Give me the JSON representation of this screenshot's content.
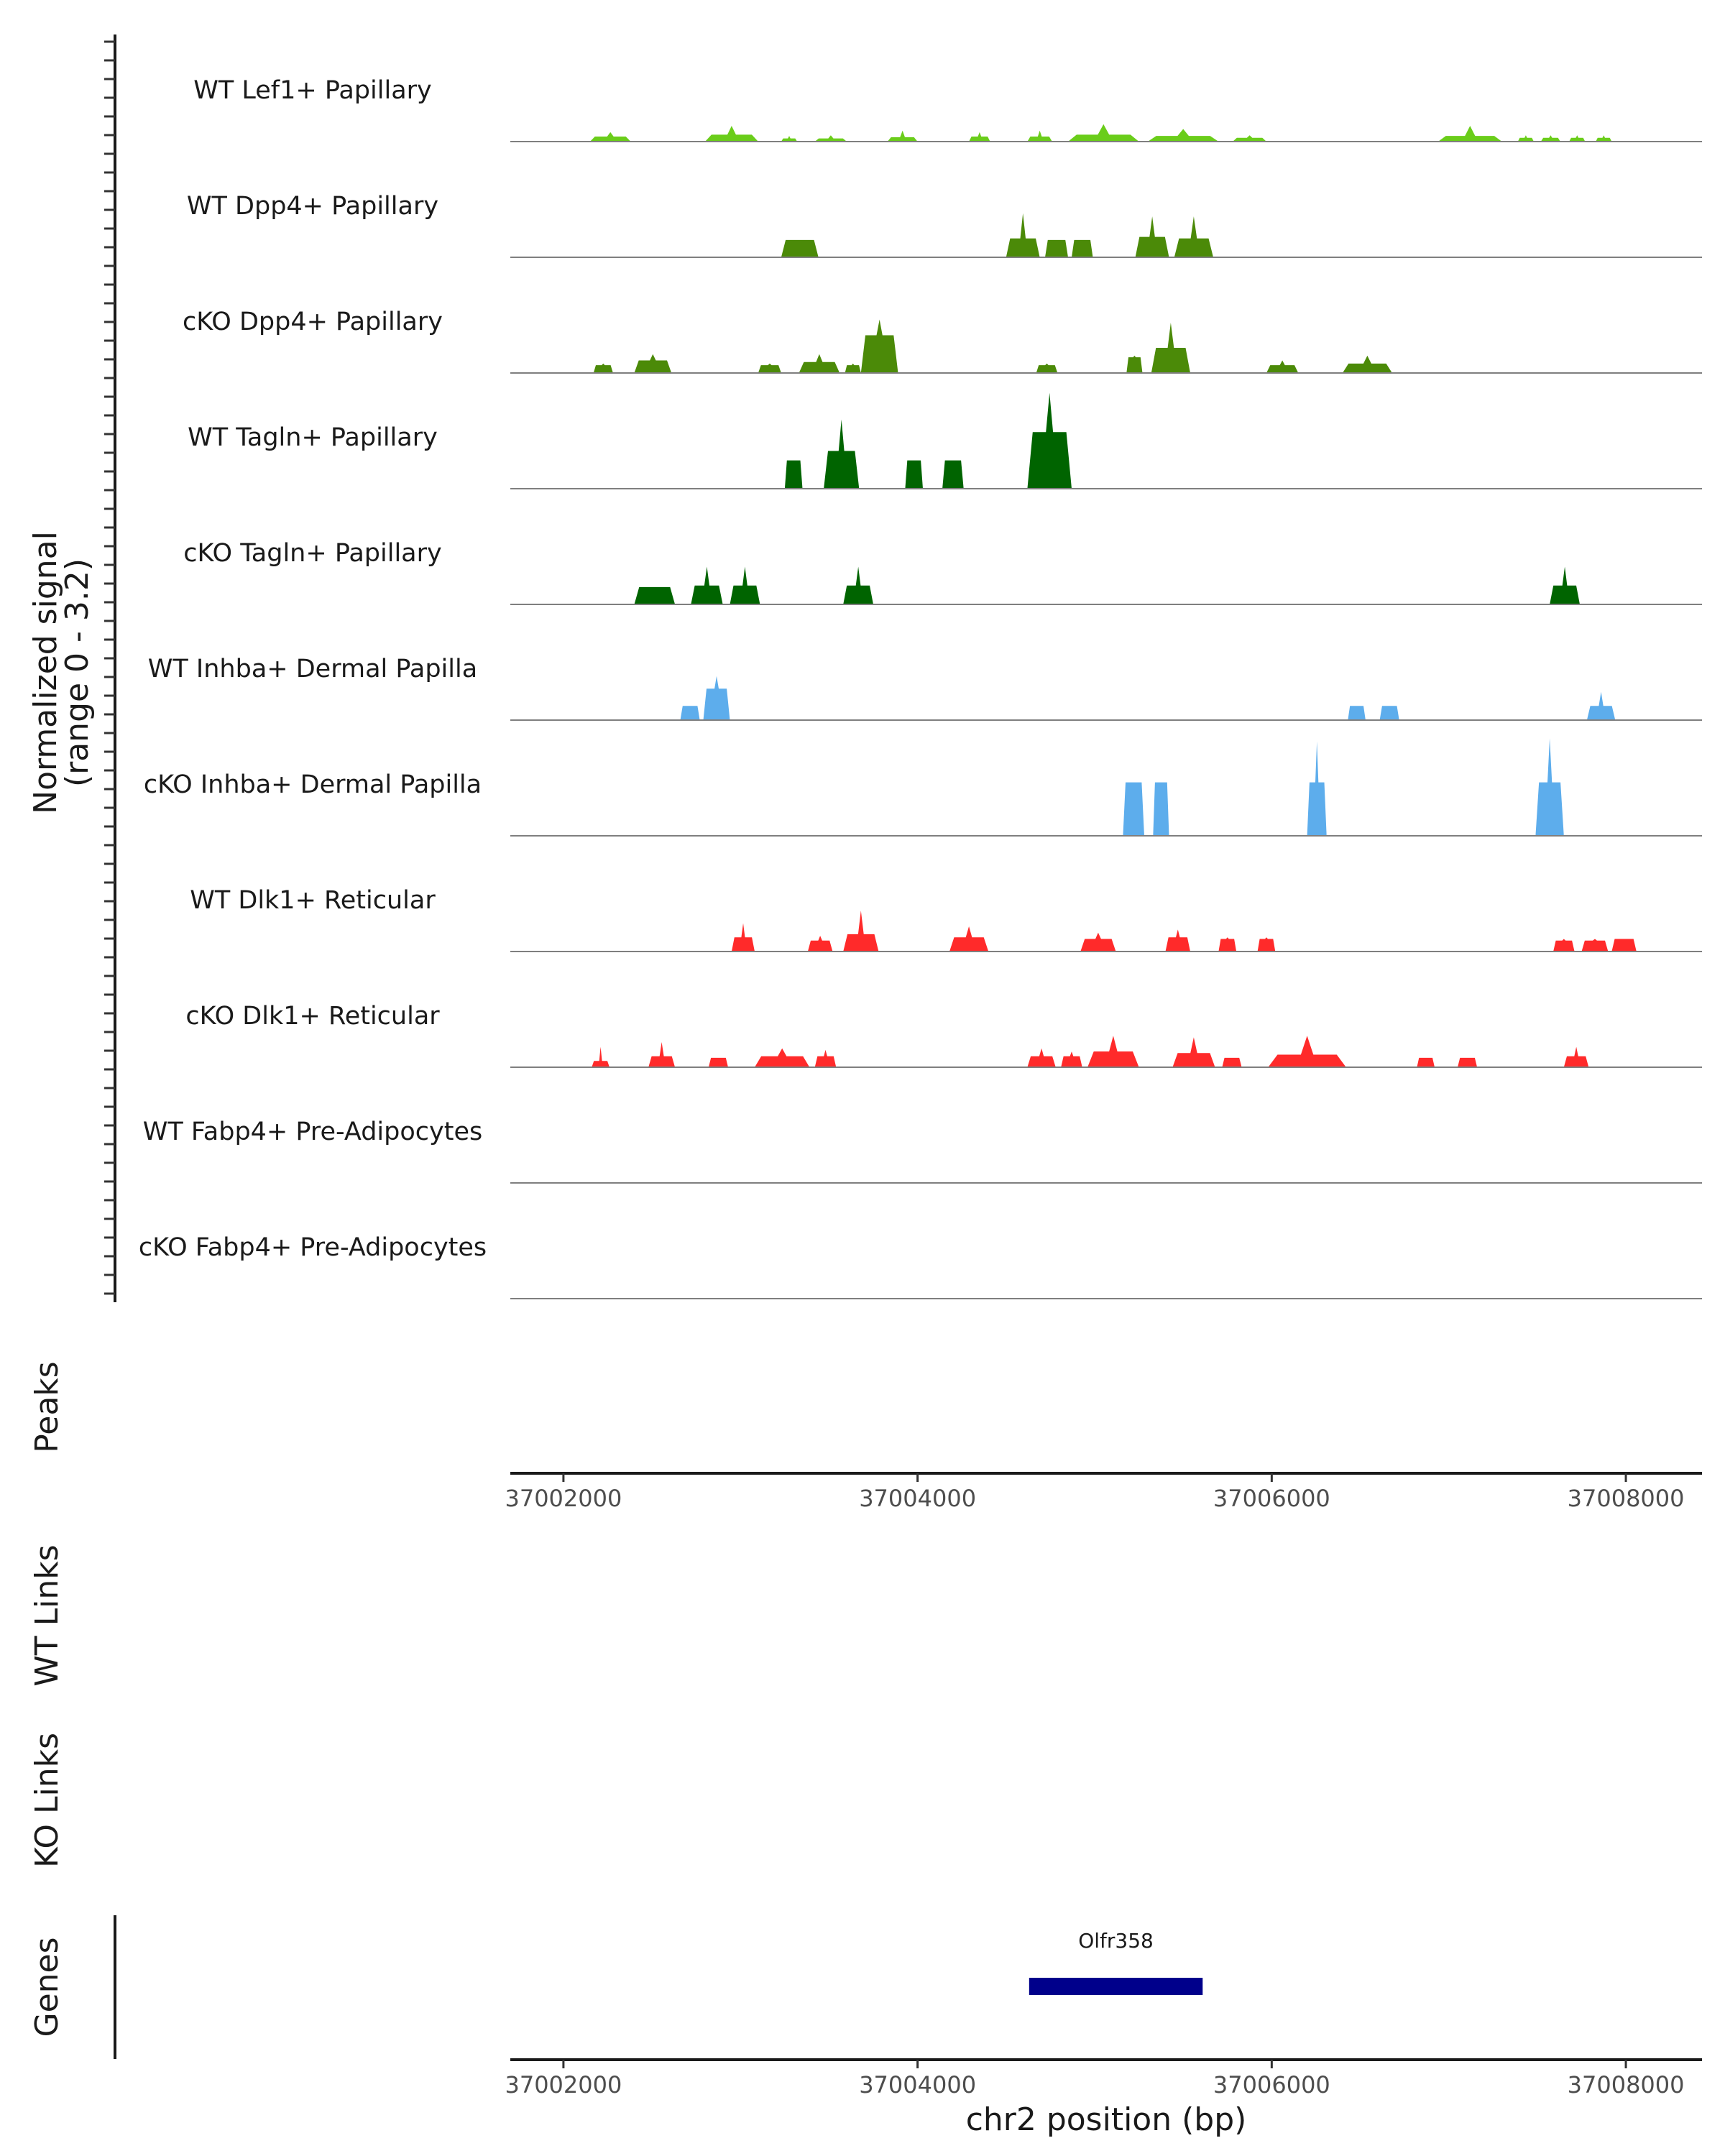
{
  "colors": {
    "light_green": "#6ACD1A",
    "mid_green": "#4B8A08",
    "dark_green": "#006400",
    "blue": "#5DADEC",
    "red": "#FF2A2A",
    "navy": "#00008B"
  },
  "chart_data": {
    "type": "coverage",
    "region": {
      "chrom": "chr2",
      "start": 37001700,
      "end": 37008430
    },
    "signal_axis_title": "Normalized signal",
    "signal_axis_subtitle": "(range 0 - 3.2)",
    "ylim": [
      0,
      3.2
    ],
    "xlabel": "chr2 position (bp)",
    "x_ticks": [
      "37002000",
      "37004000",
      "37006000",
      "37008000"
    ],
    "tracks": [
      {
        "name": "WT Lef1+ Papillary",
        "color": "#6ACD1A",
        "peaks": [
          [
            37002150,
            37002380,
            0.3,
            0.16
          ],
          [
            37002800,
            37003100,
            0.5,
            0.22
          ],
          [
            37003230,
            37003320,
            0.18,
            0.1
          ],
          [
            37003420,
            37003600,
            0.2,
            0.1
          ],
          [
            37003830,
            37004000,
            0.35,
            0.14
          ],
          [
            37004290,
            37004410,
            0.3,
            0.16
          ],
          [
            37004620,
            37004760,
            0.35,
            0.16
          ],
          [
            37004850,
            37005250,
            0.55,
            0.22
          ],
          [
            37005300,
            37005700,
            0.4,
            0.18
          ],
          [
            37005780,
            37005970,
            0.2,
            0.12
          ],
          [
            37006940,
            37007300,
            0.5,
            0.18
          ],
          [
            37007390,
            37007480,
            0.2,
            0.12
          ],
          [
            37007520,
            37007630,
            0.2,
            0.12
          ],
          [
            37007680,
            37007770,
            0.2,
            0.12
          ],
          [
            37007830,
            37007920,
            0.2,
            0.12
          ]
        ]
      },
      {
        "name": "WT Dpp4+ Papillary",
        "color": "#4B8A08",
        "peaks": [
          [
            37003230,
            37003440,
            0.55,
            0.55
          ],
          [
            37004500,
            37004690,
            1.4,
            0.6
          ],
          [
            37004720,
            37004850,
            0.55,
            0.55
          ],
          [
            37004870,
            37004990,
            0.55,
            0.55
          ],
          [
            37005230,
            37005420,
            1.3,
            0.65
          ],
          [
            37005450,
            37005670,
            1.3,
            0.6
          ]
        ]
      },
      {
        "name": "cKO Dpp4+ Papillary",
        "color": "#4B8A08",
        "peaks": [
          [
            37002170,
            37002280,
            0.3,
            0.25
          ],
          [
            37002400,
            37002610,
            0.6,
            0.4
          ],
          [
            37003100,
            37003230,
            0.3,
            0.25
          ],
          [
            37003330,
            37003560,
            0.6,
            0.35
          ],
          [
            37003590,
            37003680,
            0.3,
            0.25
          ],
          [
            37003680,
            37003890,
            1.7,
            1.2
          ],
          [
            37004670,
            37004790,
            0.3,
            0.25
          ],
          [
            37005180,
            37005270,
            0.55,
            0.5
          ],
          [
            37005320,
            37005540,
            1.6,
            0.8
          ],
          [
            37005970,
            37006150,
            0.4,
            0.25
          ],
          [
            37006400,
            37006680,
            0.55,
            0.3
          ]
        ]
      },
      {
        "name": "WT Tagln+ Papillary",
        "color": "#006400",
        "peaks": [
          [
            37003250,
            37003350,
            0.9,
            0.9
          ],
          [
            37003470,
            37003670,
            2.2,
            1.2
          ],
          [
            37003930,
            37004030,
            0.9,
            0.9
          ],
          [
            37004140,
            37004260,
            0.9,
            0.9
          ],
          [
            37004620,
            37004870,
            3.05,
            1.8
          ]
        ]
      },
      {
        "name": "cKO Tagln+ Papillary",
        "color": "#006400",
        "peaks": [
          [
            37002400,
            37002630,
            0.55,
            0.55
          ],
          [
            37002720,
            37002900,
            1.2,
            0.6
          ],
          [
            37002940,
            37003110,
            1.2,
            0.6
          ],
          [
            37003580,
            37003750,
            1.2,
            0.6
          ],
          [
            37007570,
            37007740,
            1.2,
            0.6
          ]
        ]
      },
      {
        "name": "WT Inhba+ Dermal Papilla",
        "color": "#5DADEC",
        "peaks": [
          [
            37002660,
            37002770,
            0.45,
            0.45
          ],
          [
            37002790,
            37002940,
            1.4,
            1.0
          ],
          [
            37006430,
            37006530,
            0.45,
            0.45
          ],
          [
            37006610,
            37006720,
            0.45,
            0.45
          ],
          [
            37007780,
            37007940,
            0.9,
            0.45
          ]
        ]
      },
      {
        "name": "cKO Inhba+ Dermal Papilla",
        "color": "#5DADEC",
        "peaks": [
          [
            37005160,
            37005280,
            1.7,
            1.7
          ],
          [
            37005330,
            37005420,
            1.7,
            1.7
          ],
          [
            37006200,
            37006310,
            3.0,
            1.7
          ],
          [
            37007490,
            37007650,
            3.1,
            1.7
          ]
        ]
      },
      {
        "name": "WT Dlk1+ Reticular",
        "color": "#FF2A2A",
        "peaks": [
          [
            37002950,
            37003080,
            0.9,
            0.45
          ],
          [
            37003380,
            37003520,
            0.5,
            0.35
          ],
          [
            37003580,
            37003780,
            1.3,
            0.55
          ],
          [
            37004180,
            37004400,
            0.8,
            0.45
          ],
          [
            37004920,
            37005120,
            0.6,
            0.4
          ],
          [
            37005400,
            37005540,
            0.7,
            0.45
          ],
          [
            37005700,
            37005800,
            0.45,
            0.4
          ],
          [
            37005920,
            37006020,
            0.45,
            0.4
          ],
          [
            37007590,
            37007710,
            0.4,
            0.35
          ],
          [
            37007750,
            37007900,
            0.4,
            0.35
          ],
          [
            37007920,
            37008060,
            0.4,
            0.4
          ]
        ]
      },
      {
        "name": "cKO Dlk1+ Reticular",
        "color": "#FF2A2A",
        "peaks": [
          [
            37002160,
            37002260,
            0.65,
            0.2
          ],
          [
            37002480,
            37002630,
            0.8,
            0.35
          ],
          [
            37002820,
            37002930,
            0.3,
            0.3
          ],
          [
            37003080,
            37003390,
            0.6,
            0.35
          ],
          [
            37003420,
            37003540,
            0.55,
            0.35
          ],
          [
            37004620,
            37004780,
            0.6,
            0.35
          ],
          [
            37004810,
            37004930,
            0.5,
            0.35
          ],
          [
            37004960,
            37005250,
            1.0,
            0.5
          ],
          [
            37005440,
            37005680,
            0.95,
            0.45
          ],
          [
            37005720,
            37005830,
            0.3,
            0.3
          ],
          [
            37005980,
            37006420,
            1.0,
            0.4
          ],
          [
            37006820,
            37006920,
            0.3,
            0.3
          ],
          [
            37007050,
            37007160,
            0.3,
            0.3
          ],
          [
            37007650,
            37007790,
            0.65,
            0.35
          ]
        ]
      },
      {
        "name": "WT Fabp4+ Pre-Adipocytes",
        "color": "#6ACD1A",
        "peaks": []
      },
      {
        "name": "cKO Fabp4+ Pre-Adipocytes",
        "color": "#6ACD1A",
        "peaks": []
      }
    ],
    "panels": [
      "Peaks",
      "WT Links",
      "KO Links",
      "Genes"
    ],
    "genes": [
      {
        "name": "Olfr358",
        "start": 37004630,
        "end": 37005610,
        "color": "#00008B"
      }
    ]
  }
}
